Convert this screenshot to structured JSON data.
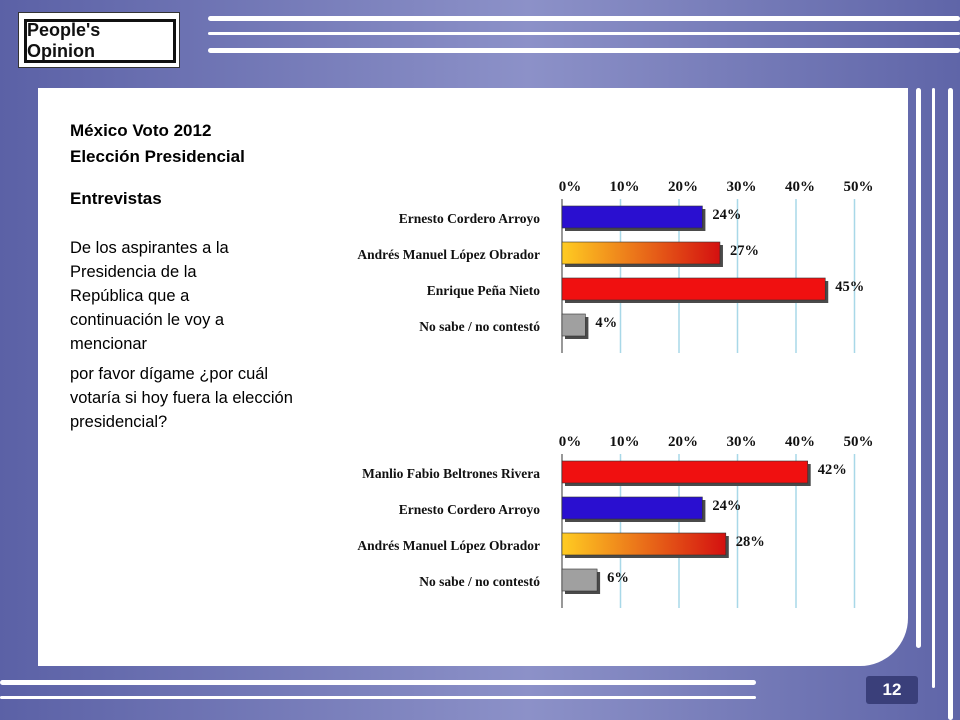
{
  "brand": {
    "logo_text": "People's Opinion"
  },
  "intro": {
    "title_line1": "México Voto 2012",
    "title_line2": "Elección  Presidencial",
    "subtitle": "Entrevistas",
    "question_part1": "De los aspirantes a la Presidencia de la República que a continuación le voy a mencionar",
    "question_part2": "por favor dígame ¿por cuál votaría si hoy fuera la elección presidencial?"
  },
  "page_number": "12",
  "chart_data": [
    {
      "type": "bar",
      "orientation": "horizontal",
      "x_ticks": [
        "0%",
        "10%",
        "20%",
        "30%",
        "40%",
        "50%"
      ],
      "xlim": [
        0,
        50
      ],
      "categories": [
        "Ernesto Cordero Arroyo",
        "Andrés Manuel López Obrador",
        "Enrique Peña Nieto",
        "No sabe / no contestó"
      ],
      "values": [
        24,
        27,
        45,
        4
      ],
      "value_labels": [
        "24%",
        "27%",
        "45%",
        "4%"
      ],
      "colors": [
        "#2a0fd0",
        "#e8421a",
        "#f01010",
        "#a0a0a0"
      ],
      "grid": true
    },
    {
      "type": "bar",
      "orientation": "horizontal",
      "x_ticks": [
        "0%",
        "10%",
        "20%",
        "30%",
        "40%",
        "50%"
      ],
      "xlim": [
        0,
        50
      ],
      "categories": [
        "Manlio Fabio Beltrones Rivera",
        "Ernesto Cordero Arroyo",
        "Andrés Manuel López Obrador",
        "No sabe / no contestó"
      ],
      "values": [
        42,
        24,
        28,
        6
      ],
      "value_labels": [
        "42%",
        "24%",
        "28%",
        "6%"
      ],
      "colors": [
        "#f01010",
        "#2a0fd0",
        "#e8421a",
        "#a0a0a0"
      ],
      "grid": true
    }
  ]
}
